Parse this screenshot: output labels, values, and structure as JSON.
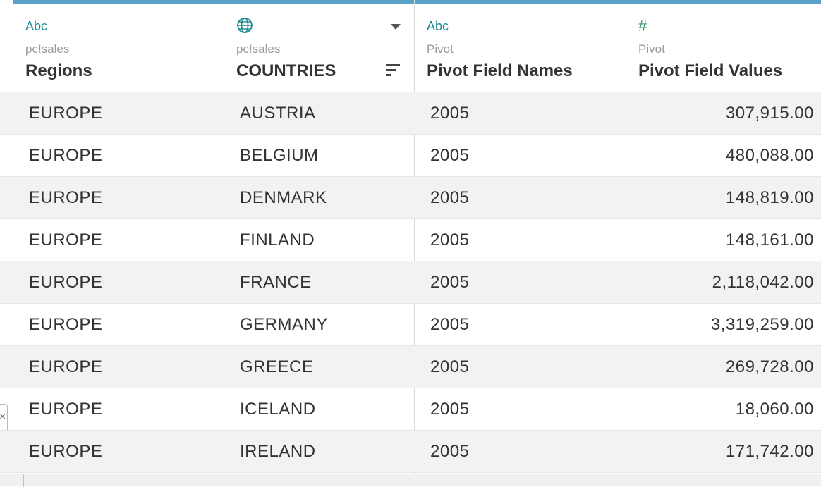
{
  "columns": [
    {
      "type_icon": "Abc",
      "icon_name": "string-type-icon",
      "source": "pc!sales",
      "name": "Regions"
    },
    {
      "type_icon": "globe",
      "icon_name": "geographic-type-icon",
      "source": "pc!sales",
      "name": "COUNTRIES"
    },
    {
      "type_icon": "Abc",
      "icon_name": "string-type-icon",
      "source": "Pivot",
      "name": "Pivot Field Names"
    },
    {
      "type_icon": "#",
      "icon_name": "number-type-icon",
      "source": "Pivot",
      "name": "Pivot Field Values"
    }
  ],
  "rows": [
    {
      "region": "EUROPE",
      "country": "AUSTRIA",
      "field_name": "2005",
      "value": "307,915.00"
    },
    {
      "region": "EUROPE",
      "country": "BELGIUM",
      "field_name": "2005",
      "value": "480,088.00"
    },
    {
      "region": "EUROPE",
      "country": "DENMARK",
      "field_name": "2005",
      "value": "148,819.00"
    },
    {
      "region": "EUROPE",
      "country": "FINLAND",
      "field_name": "2005",
      "value": "148,161.00"
    },
    {
      "region": "EUROPE",
      "country": "FRANCE",
      "field_name": "2005",
      "value": "2,118,042.00"
    },
    {
      "region": "EUROPE",
      "country": "GERMANY",
      "field_name": "2005",
      "value": "3,319,259.00"
    },
    {
      "region": "EUROPE",
      "country": "GREECE",
      "field_name": "2005",
      "value": "269,728.00"
    },
    {
      "region": "EUROPE",
      "country": "ICELAND",
      "field_name": "2005",
      "value": "18,060.00"
    },
    {
      "region": "EUROPE",
      "country": "IRELAND",
      "field_name": "2005",
      "value": "171,742.00"
    }
  ],
  "colors": {
    "header_accent": "#5aa1c9",
    "type_icon": "#1e8a95",
    "alt_row": "#f2f2f2"
  }
}
